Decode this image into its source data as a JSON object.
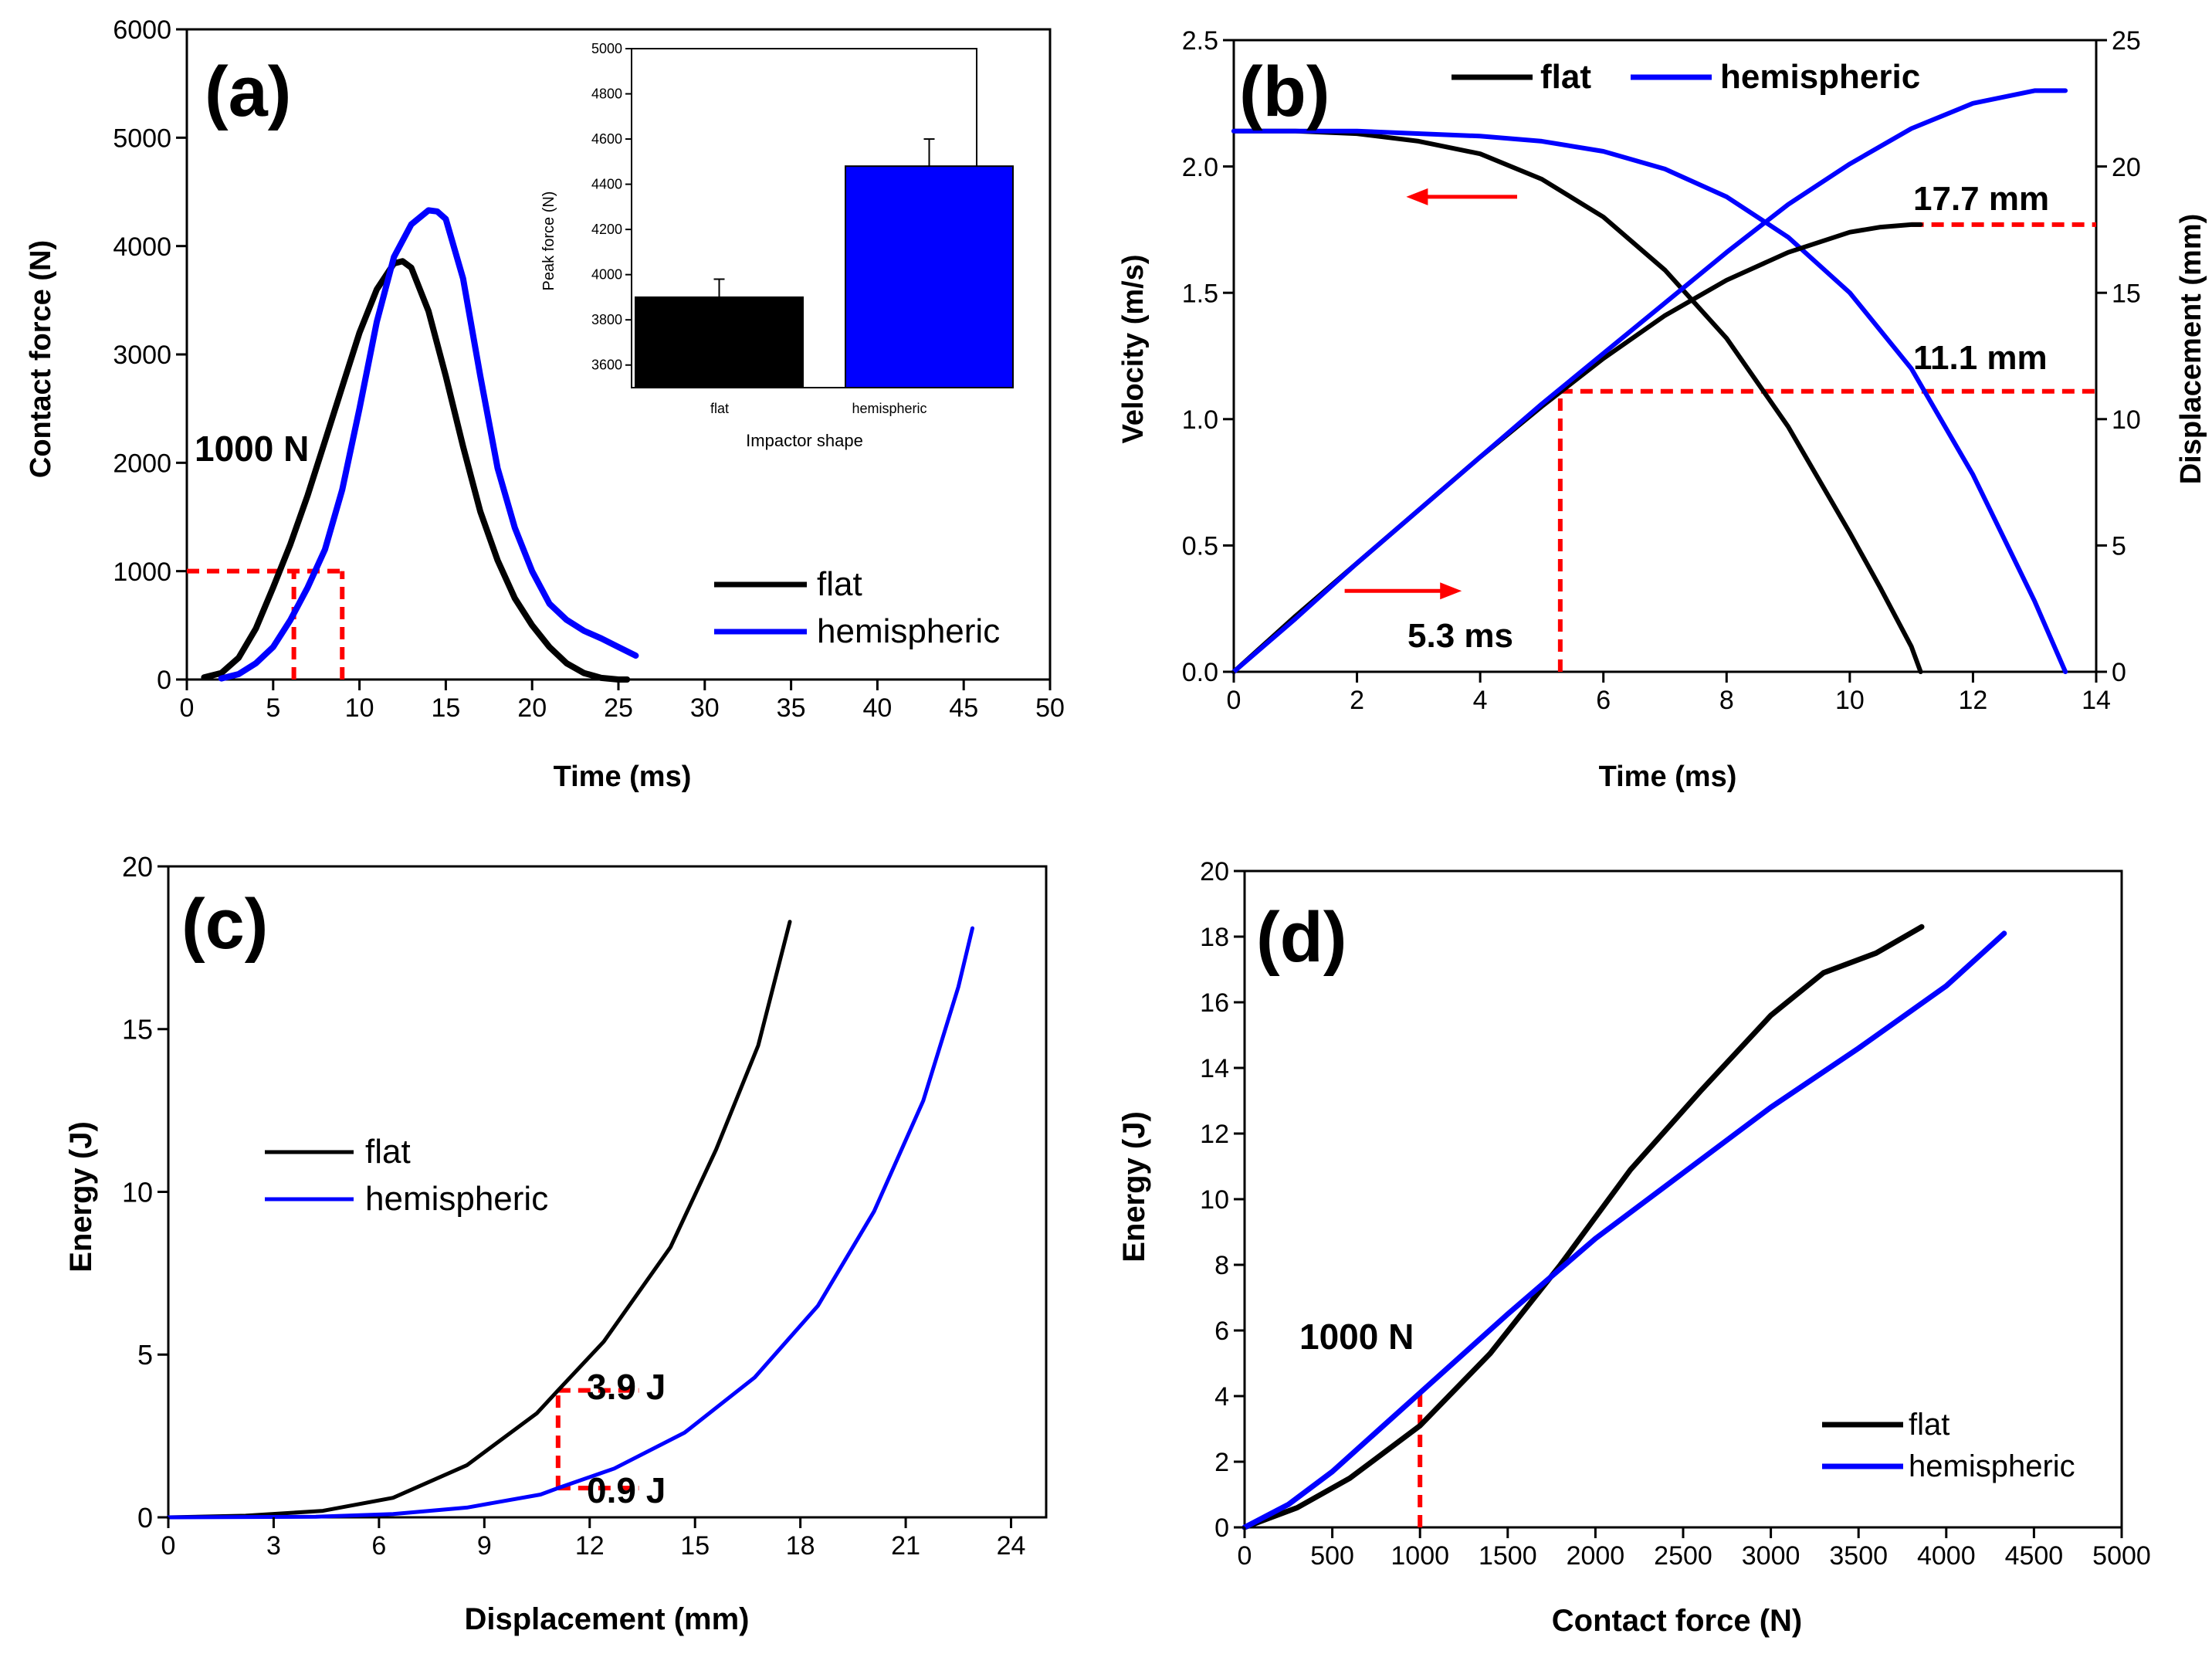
{
  "figure": {
    "colors": {
      "flat": "#000000",
      "hemispheric": "#0000ff",
      "annotation": "#ff0000",
      "axis": "#000000"
    }
  },
  "chart_data": [
    {
      "id": "a",
      "panel_label": "(a)",
      "type": "line",
      "xlabel": "Time (ms)",
      "ylabel": "Contact force (N)",
      "xlim": [
        0,
        50
      ],
      "ylim": [
        0,
        6000
      ],
      "xticks": [
        "0",
        "5",
        "10",
        "15",
        "20",
        "25",
        "30",
        "35",
        "40",
        "45",
        "50"
      ],
      "yticks": [
        "0",
        "1000",
        "2000",
        "3000",
        "4000",
        "5000",
        "6000"
      ],
      "legend": [
        "flat",
        "hemispheric"
      ],
      "legend_position": "lower-right",
      "series": [
        {
          "name": "flat",
          "color": "#000000",
          "x": [
            1,
            2,
            3,
            4,
            5,
            6,
            7,
            8,
            9,
            10,
            11,
            12,
            12.5,
            13,
            14,
            15,
            16,
            17,
            18,
            19,
            20,
            21,
            22,
            23,
            24,
            25,
            25.5
          ],
          "y": [
            20,
            60,
            200,
            470,
            850,
            1250,
            1700,
            2200,
            2700,
            3200,
            3600,
            3840,
            3860,
            3800,
            3400,
            2800,
            2150,
            1550,
            1100,
            750,
            500,
            300,
            150,
            60,
            15,
            0,
            0
          ]
        },
        {
          "name": "hemispheric",
          "color": "#0000ff",
          "x": [
            2,
            3,
            4,
            5,
            6,
            7,
            8,
            9,
            10,
            11,
            12,
            13,
            14,
            14.5,
            15,
            16,
            17,
            18,
            19,
            20,
            21,
            22,
            23,
            24,
            25,
            26
          ],
          "y": [
            10,
            50,
            150,
            300,
            550,
            850,
            1200,
            1750,
            2500,
            3300,
            3900,
            4200,
            4330,
            4320,
            4250,
            3700,
            2800,
            1950,
            1400,
            1000,
            700,
            550,
            450,
            380,
            300,
            220
          ]
        }
      ],
      "annotations": [
        {
          "text": "1000 N"
        }
      ],
      "guides": [
        {
          "type": "hline",
          "y": 1000,
          "x_from": 0,
          "x_to": 9
        },
        {
          "type": "vline",
          "x": 6.2,
          "y_from": 0,
          "y_to": 1000
        },
        {
          "type": "vline",
          "x": 9,
          "y_from": 0,
          "y_to": 1000
        }
      ],
      "inset": {
        "type": "bar",
        "categories": [
          "flat",
          "hemispheric"
        ],
        "values": [
          3900,
          4480
        ],
        "errors": [
          80,
          120
        ],
        "colors": [
          "#000000",
          "#0000ff"
        ],
        "xlabel": "Impactor shape",
        "ylabel": "Peak force (N)",
        "ylim": [
          3500,
          5000
        ],
        "yticks": [
          "3600",
          "3800",
          "4000",
          "4200",
          "4400",
          "4600",
          "4800",
          "5000"
        ]
      }
    },
    {
      "id": "b",
      "panel_label": "(b)",
      "type": "line",
      "xlabel": "Time (ms)",
      "ylabel": "Velocity (m/s)",
      "y2label": "Displacement (mm)",
      "xlim": [
        0,
        14
      ],
      "ylim": [
        0,
        2.5
      ],
      "y2lim": [
        0,
        25
      ],
      "xticks": [
        "0",
        "2",
        "4",
        "6",
        "8",
        "10",
        "12",
        "14"
      ],
      "yticks": [
        "0.0",
        "0.5",
        "1.0",
        "1.5",
        "2.0",
        "2.5"
      ],
      "y2ticks": [
        "0",
        "5",
        "10",
        "15",
        "20",
        "25"
      ],
      "legend": [
        "flat",
        "hemispheric"
      ],
      "legend_position": "top",
      "series": [
        {
          "name": "flat",
          "color": "#000000",
          "axis": "left",
          "x": [
            0,
            1,
            2,
            3,
            4,
            5,
            6,
            7,
            8,
            9,
            10,
            10.5,
            11,
            11.15
          ],
          "y": [
            2.14,
            2.14,
            2.13,
            2.1,
            2.05,
            1.95,
            1.8,
            1.59,
            1.32,
            0.97,
            0.55,
            0.33,
            0.1,
            0.0
          ]
        },
        {
          "name": "hemispheric",
          "color": "#0000ff",
          "axis": "left",
          "x": [
            0,
            2,
            4,
            5,
            6,
            7,
            8,
            9,
            10,
            11,
            12,
            13,
            13.5
          ],
          "y": [
            2.14,
            2.14,
            2.12,
            2.1,
            2.06,
            1.99,
            1.88,
            1.72,
            1.5,
            1.2,
            0.78,
            0.28,
            0.0
          ]
        },
        {
          "name": "flat",
          "color": "#000000",
          "axis": "right",
          "x": [
            0,
            1,
            2,
            3,
            4,
            5,
            6,
            7,
            8,
            9,
            10,
            10.5,
            11,
            11.15
          ],
          "y": [
            0,
            2.2,
            4.3,
            6.4,
            8.5,
            10.5,
            12.4,
            14.1,
            15.5,
            16.6,
            17.4,
            17.6,
            17.7,
            17.7
          ]
        },
        {
          "name": "hemispheric",
          "color": "#0000ff",
          "axis": "right",
          "x": [
            0,
            1,
            2,
            3,
            4,
            5,
            6,
            7,
            8,
            9,
            10,
            11,
            12,
            13,
            13.5
          ],
          "y": [
            0,
            2.1,
            4.3,
            6.4,
            8.5,
            10.6,
            12.6,
            14.6,
            16.6,
            18.5,
            20.1,
            21.5,
            22.5,
            23.0,
            23.0
          ]
        }
      ],
      "annotations": [
        {
          "text": "17.7 mm"
        },
        {
          "text": "11.1 mm"
        },
        {
          "text": "5.3 ms"
        }
      ],
      "guides": [
        {
          "type": "hline",
          "axis": "right",
          "y": 17.7,
          "x_from": 11,
          "x_to": 14
        },
        {
          "type": "hline",
          "axis": "right",
          "y": 11.1,
          "x_from": 5.3,
          "x_to": 14
        },
        {
          "type": "vline",
          "x": 5.3,
          "y_from": 0,
          "y_to": 11.1,
          "axis": "right"
        }
      ],
      "arrows": [
        {
          "direction": "left",
          "target_axis": "left",
          "x_from": 4.6,
          "x_to": 2.8,
          "y": 1.88
        },
        {
          "direction": "right",
          "target_axis": "right",
          "x_from": 1.8,
          "x_to": 3.7,
          "y": 3.2
        }
      ]
    },
    {
      "id": "c",
      "panel_label": "(c)",
      "type": "line",
      "xlabel": "Displacement (mm)",
      "ylabel": "Energy (J)",
      "xlim": [
        0,
        25
      ],
      "ylim": [
        0,
        20
      ],
      "xticks": [
        "0",
        "3",
        "6",
        "9",
        "12",
        "15",
        "18",
        "21",
        "24"
      ],
      "yticks": [
        "0",
        "5",
        "10",
        "15",
        "20"
      ],
      "legend": [
        "flat",
        "hemispheric"
      ],
      "legend_position": "center-left",
      "series": [
        {
          "name": "flat",
          "color": "#000000",
          "x": [
            0,
            2.2,
            4.4,
            6.4,
            8.5,
            10.5,
            11.1,
            12.4,
            14.3,
            15.6,
            16.8,
            17.7
          ],
          "y": [
            0,
            0.05,
            0.2,
            0.6,
            1.6,
            3.2,
            3.9,
            5.4,
            8.3,
            11.3,
            14.5,
            18.3
          ]
        },
        {
          "name": "hemispheric",
          "color": "#0000ff",
          "x": [
            0,
            4.2,
            6.4,
            8.5,
            10.6,
            11.1,
            12.7,
            14.7,
            16.7,
            18.5,
            20.1,
            21.5,
            22.5,
            22.9
          ],
          "y": [
            0,
            0.02,
            0.1,
            0.3,
            0.7,
            0.9,
            1.5,
            2.6,
            4.3,
            6.5,
            9.4,
            12.8,
            16.3,
            18.1
          ]
        }
      ],
      "annotations": [
        {
          "text": "3.9 J"
        },
        {
          "text": "0.9 J"
        }
      ],
      "guides": [
        {
          "type": "vline",
          "x": 11.1,
          "y_from": 0.9,
          "y_to": 3.9
        },
        {
          "type": "hline",
          "y": 3.9,
          "x_from": 11.1,
          "x_to": 13.4
        },
        {
          "type": "hline",
          "y": 0.9,
          "x_from": 11.1,
          "x_to": 13.4
        }
      ]
    },
    {
      "id": "d",
      "panel_label": "(d)",
      "type": "line",
      "xlabel": "Contact force (N)",
      "ylabel": "Energy (J)",
      "xlim": [
        0,
        5000
      ],
      "ylim": [
        0,
        20
      ],
      "xticks": [
        "0",
        "500",
        "1000",
        "1500",
        "2000",
        "2500",
        "3000",
        "3500",
        "4000",
        "4500",
        "5000"
      ],
      "yticks": [
        "0",
        "2",
        "4",
        "6",
        "8",
        "10",
        "12",
        "14",
        "16",
        "18",
        "20"
      ],
      "legend": [
        "flat",
        "hemispheric"
      ],
      "legend_position": "lower-right",
      "series": [
        {
          "name": "flat",
          "color": "#000000",
          "x": [
            0,
            300,
            600,
            1000,
            1400,
            1800,
            2200,
            2600,
            3000,
            3300,
            3600,
            3860
          ],
          "y": [
            0,
            0.6,
            1.5,
            3.1,
            5.3,
            8.0,
            10.9,
            13.3,
            15.6,
            16.9,
            17.5,
            18.3
          ]
        },
        {
          "name": "hemispheric",
          "color": "#0000ff",
          "x": [
            0,
            250,
            500,
            1000,
            1500,
            2000,
            2500,
            3000,
            3500,
            4000,
            4330
          ],
          "y": [
            0,
            0.7,
            1.7,
            4.1,
            6.5,
            8.8,
            10.8,
            12.8,
            14.6,
            16.5,
            18.1
          ]
        }
      ],
      "annotations": [
        {
          "text": "1000 N"
        }
      ],
      "guides": [
        {
          "type": "vline",
          "x": 1000,
          "y_from": 0,
          "y_to": 4.1
        }
      ]
    }
  ]
}
